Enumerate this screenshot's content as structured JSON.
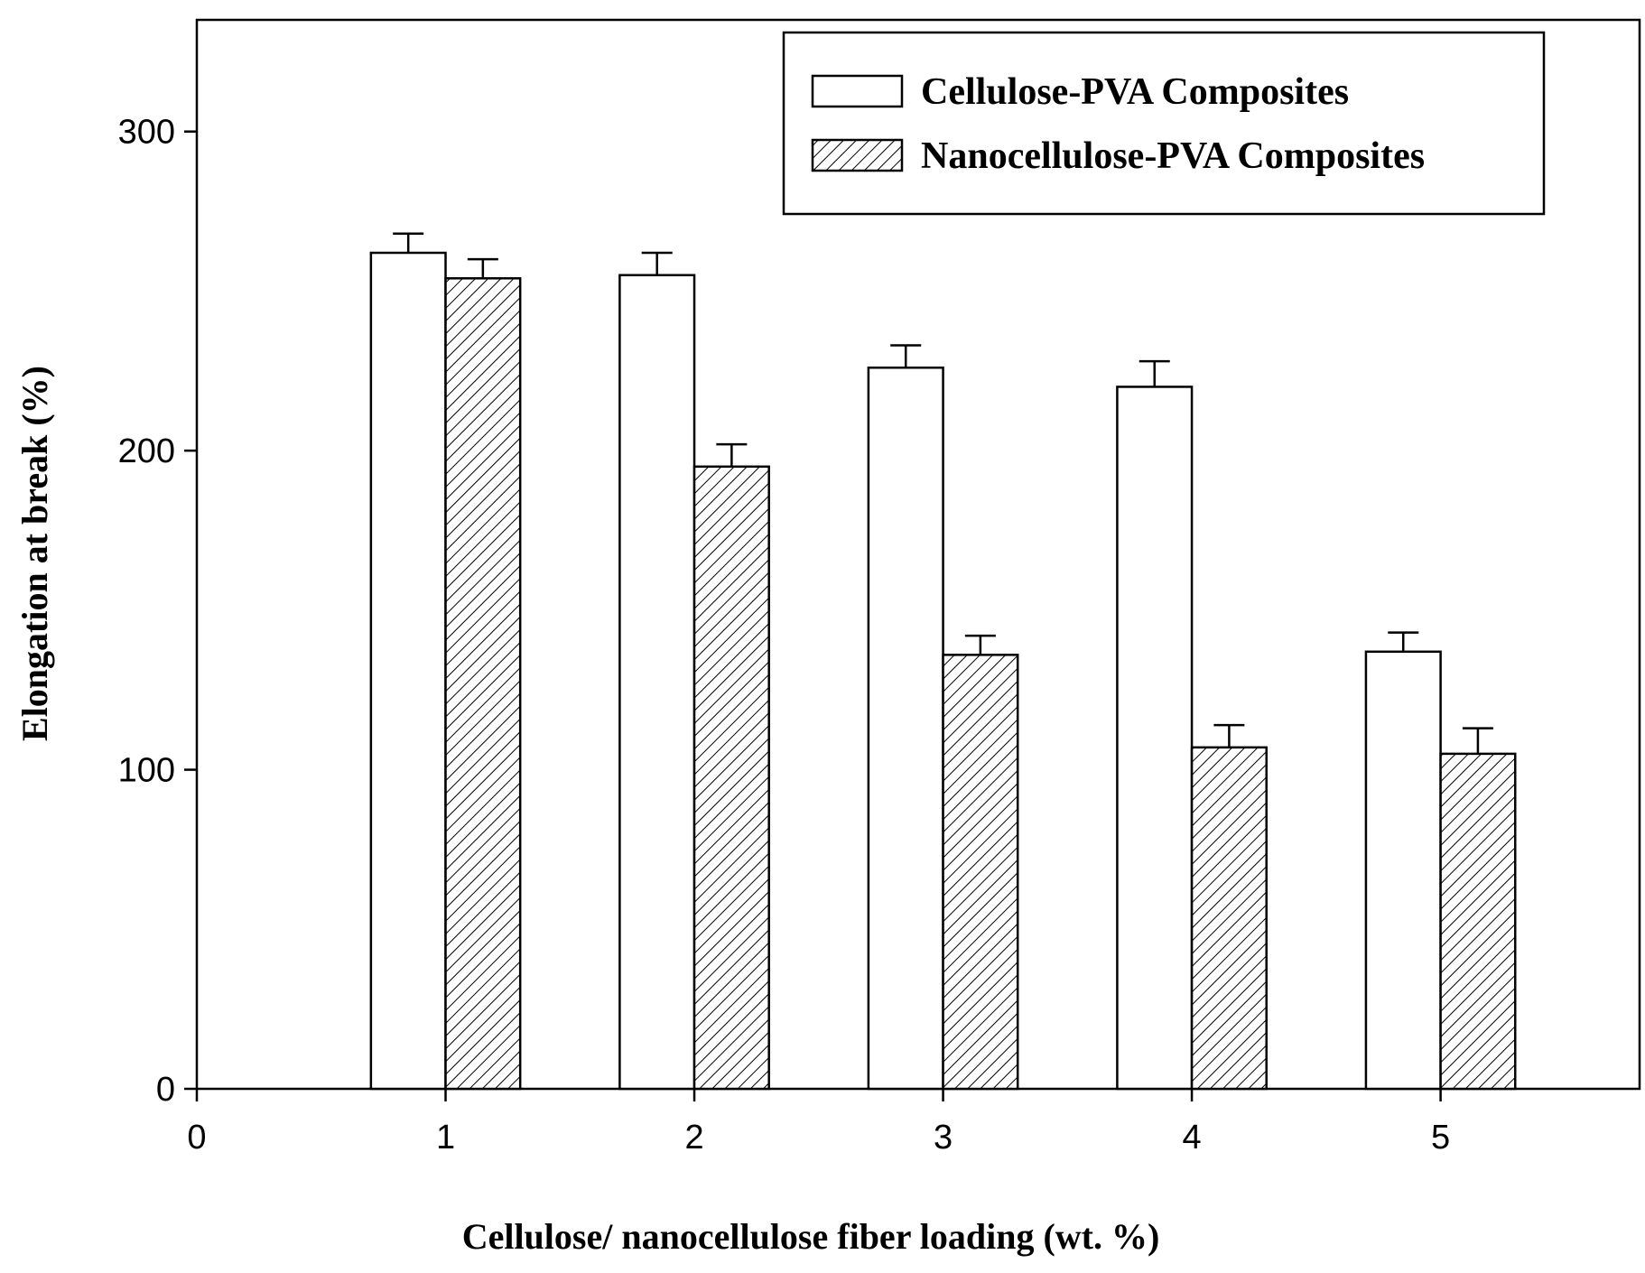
{
  "chart_data": {
    "type": "bar",
    "title": "",
    "xlabel": "Cellulose/ nanocellulose fiber loading (wt. %)",
    "ylabel": "Elongation at break (%)",
    "xlim": [
      0,
      5.8
    ],
    "ylim": [
      0,
      335
    ],
    "x_ticks": [
      "0",
      "1",
      "2",
      "3",
      "4",
      "5"
    ],
    "y_ticks": [
      "0",
      "100",
      "200",
      "300"
    ],
    "categories": [
      "1",
      "2",
      "3",
      "4",
      "5"
    ],
    "series": [
      {
        "name": "Cellulose-PVA Composites",
        "fill": "open",
        "values": [
          262,
          255,
          226,
          220,
          137
        ],
        "errors": [
          6,
          7,
          7,
          8,
          6
        ]
      },
      {
        "name": "Nanocellulose-PVA Composites",
        "fill": "hatched",
        "values": [
          254,
          195,
          136,
          107,
          105
        ],
        "errors": [
          6,
          7,
          6,
          7,
          8
        ]
      }
    ],
    "legend_position": "top-right",
    "grid": false
  },
  "colors": {
    "stroke": "#000000",
    "background": "#ffffff",
    "open_fill": "#ffffff"
  }
}
